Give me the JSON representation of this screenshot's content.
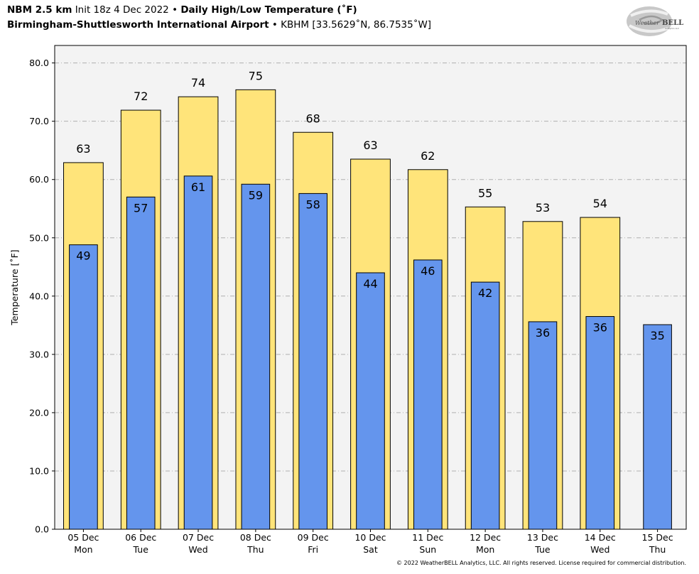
{
  "header": {
    "model": "NBM 2.5 km",
    "init": "Init 18z 4 Dec 2022",
    "bullet1": "•",
    "product": "Daily High/Low Temperature (˚F)",
    "location": "Birmingham-Shuttlesworth International Airport",
    "bullet2": "•",
    "station": "KBHM [33.5629˚N, 86.7535˚W]"
  },
  "logo": {
    "text_prefix": "Weather",
    "text_brand": "BELL",
    "subtext": "Analytics LLC"
  },
  "footer": {
    "copyright": "© 2022 WeatherBELL Analytics, LLC. All rights reserved. License required for commercial distribution."
  },
  "colors": {
    "high_fill": "#ffe47a",
    "low_fill": "#6495ed",
    "plot_bg": "#f3f3f3",
    "grid": "#b0b0b0"
  },
  "chart_data": {
    "type": "bar",
    "title": "Daily High/Low Temperature (˚F)",
    "ylabel": "Temperature [˚F]",
    "xlabel": "",
    "ylim": [
      0,
      83
    ],
    "yticks": [
      "0.0",
      "10.0",
      "20.0",
      "30.0",
      "40.0",
      "50.0",
      "60.0",
      "70.0",
      "80.0"
    ],
    "ytick_values": [
      0,
      10,
      20,
      30,
      40,
      50,
      60,
      70,
      80
    ],
    "grid": true,
    "categories": [
      {
        "date": "05 Dec",
        "day": "Mon"
      },
      {
        "date": "06 Dec",
        "day": "Tue"
      },
      {
        "date": "07 Dec",
        "day": "Wed"
      },
      {
        "date": "08 Dec",
        "day": "Thu"
      },
      {
        "date": "09 Dec",
        "day": "Fri"
      },
      {
        "date": "10 Dec",
        "day": "Sat"
      },
      {
        "date": "11 Dec",
        "day": "Sun"
      },
      {
        "date": "12 Dec",
        "day": "Mon"
      },
      {
        "date": "13 Dec",
        "day": "Tue"
      },
      {
        "date": "14 Dec",
        "day": "Wed"
      },
      {
        "date": "15 Dec",
        "day": "Thu"
      }
    ],
    "series": [
      {
        "values": [
          62.9,
          71.9,
          74.2,
          75.4,
          68.1,
          63.5,
          61.7,
          55.3,
          52.8,
          53.5,
          null
        ],
        "labels": [
          "63",
          "72",
          "74",
          "75",
          "68",
          "63",
          "62",
          "55",
          "53",
          "54",
          ""
        ]
      },
      {
        "values": [
          48.8,
          57.0,
          60.6,
          59.2,
          57.6,
          44.0,
          46.2,
          42.4,
          35.6,
          36.5,
          35.1
        ],
        "labels": [
          "49",
          "57",
          "61",
          "59",
          "58",
          "44",
          "46",
          "42",
          "36",
          "36",
          "35"
        ]
      }
    ]
  }
}
